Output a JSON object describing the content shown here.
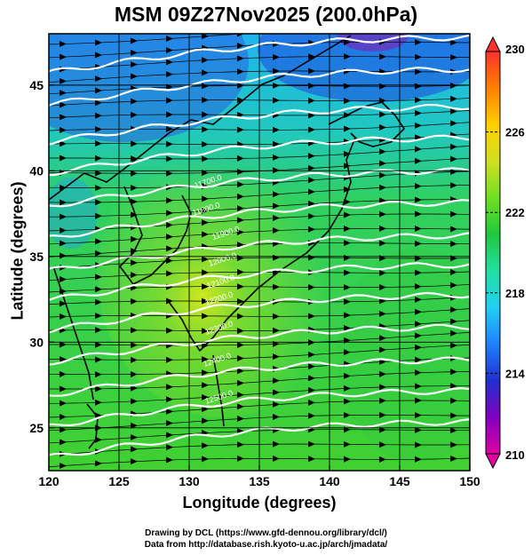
{
  "title": "MSM 09Z27Nov2025 (200.0hPa)",
  "x_axis": {
    "label": "Longitude (degrees)",
    "range": [
      120,
      150
    ],
    "ticks": [
      "120",
      "125",
      "130",
      "135",
      "140",
      "145",
      "150"
    ]
  },
  "y_axis": {
    "label": "Latitude  (degrees)",
    "range": [
      22.5,
      48
    ],
    "ticks": [
      "25",
      "30",
      "35",
      "40",
      "45"
    ]
  },
  "colorbar": {
    "range": [
      210,
      230
    ],
    "ticks": [
      "210",
      "214",
      "218",
      "222",
      "226",
      "230"
    ],
    "colors": [
      "#e000a0",
      "#8000c0",
      "#2030d0",
      "#2080ff",
      "#20d0f0",
      "#20e0a0",
      "#20c840",
      "#70e020",
      "#d0e020",
      "#ffd000",
      "#ff8000",
      "#ff3030"
    ]
  },
  "contours": {
    "color": "#ffffff",
    "labels": [
      "12500.0",
      "12400.0",
      "12300.0",
      "12200.0",
      "12100.0",
      "12000.0",
      "11900.0",
      "11800.0",
      "11700.0"
    ]
  },
  "credits": {
    "line1": "Drawing by DCL (https://www.gfd-dennou.org/library/dcl/)",
    "line2": "Data from http://database.rish.kyoto-u.ac.jp/arch/jmadata/"
  }
}
